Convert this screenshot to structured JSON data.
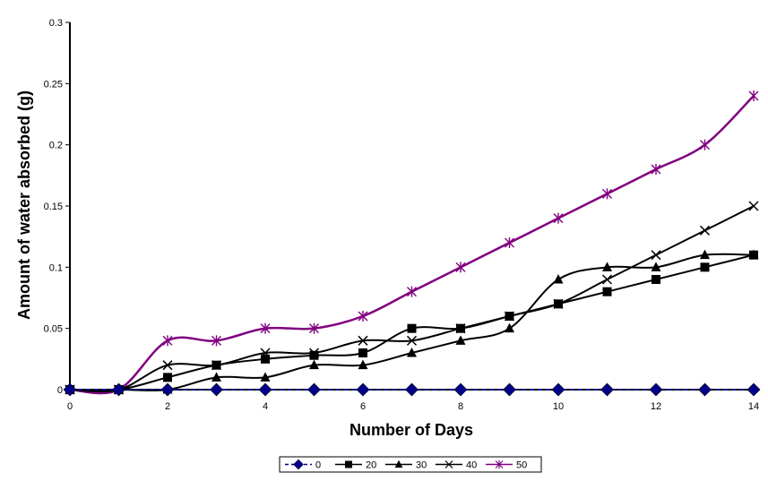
{
  "chart_data": {
    "type": "line",
    "title": "",
    "xlabel": "Number of Days",
    "ylabel": "Amount of water absorbed (g)",
    "xlim": [
      0,
      14
    ],
    "ylim": [
      0,
      0.3
    ],
    "x_ticks": [
      "0",
      "2",
      "4",
      "6",
      "8",
      "10",
      "12",
      "14"
    ],
    "x_tick_values": [
      0,
      2,
      4,
      6,
      8,
      10,
      12,
      14
    ],
    "y_ticks": [
      "0",
      "0.05",
      "0.1",
      "0.15",
      "0.2",
      "0.25",
      "0.3"
    ],
    "y_tick_values": [
      0,
      0.05,
      0.1,
      0.15,
      0.2,
      0.25,
      0.3
    ],
    "grid": false,
    "legend_position": "bottom",
    "x": [
      0,
      1,
      2,
      3,
      4,
      5,
      6,
      7,
      8,
      9,
      10,
      11,
      12,
      13,
      14
    ],
    "series": [
      {
        "name": "0",
        "color": "#00008B",
        "marker": "diamond",
        "dashed": true,
        "smooth": false,
        "values": [
          0,
          0,
          0,
          0,
          0,
          0,
          0,
          0,
          0,
          0,
          0,
          0,
          0,
          0,
          0
        ]
      },
      {
        "name": "20",
        "color": "#000000",
        "marker": "square",
        "dashed": false,
        "smooth": true,
        "values": [
          0,
          0,
          0.01,
          0.02,
          0.025,
          0.028,
          0.03,
          0.05,
          0.05,
          0.06,
          0.07,
          0.08,
          0.09,
          0.1,
          0.11
        ]
      },
      {
        "name": "30",
        "color": "#000000",
        "marker": "triangle",
        "dashed": false,
        "smooth": true,
        "values": [
          0,
          0,
          0,
          0.01,
          0.01,
          0.02,
          0.02,
          0.03,
          0.04,
          0.05,
          0.09,
          0.1,
          0.1,
          0.11,
          0.11
        ]
      },
      {
        "name": "40",
        "color": "#000000",
        "marker": "x",
        "dashed": false,
        "smooth": true,
        "values": [
          0,
          0,
          0.02,
          0.02,
          0.03,
          0.03,
          0.04,
          0.04,
          0.05,
          0.06,
          0.07,
          0.09,
          0.11,
          0.13,
          0.15
        ]
      },
      {
        "name": "50",
        "color": "#800080",
        "marker": "star",
        "dashed": false,
        "smooth": true,
        "values": [
          0,
          0,
          0.04,
          0.04,
          0.05,
          0.05,
          0.06,
          0.08,
          0.1,
          0.12,
          0.14,
          0.16,
          0.18,
          0.2,
          0.24
        ]
      }
    ]
  }
}
